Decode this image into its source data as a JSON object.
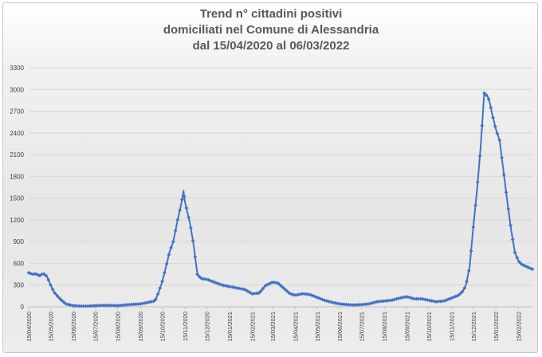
{
  "chart_data": {
    "type": "line",
    "title": "Trend n° cittadini positivi",
    "subtitle_lines": [
      "domiciliati nel Comune di Alessandria",
      "dal 15/04/2020 al 06/03/2022"
    ],
    "xlabel": "",
    "ylabel": "",
    "ylim": [
      0,
      3300
    ],
    "yticks": [
      0,
      300,
      600,
      900,
      1200,
      1500,
      1800,
      2100,
      2400,
      2700,
      3000,
      3300
    ],
    "xtick_labels": [
      "15/04/2020",
      "15/05/2020",
      "15/06/2020",
      "15/07/2020",
      "15/08/2020",
      "15/09/2020",
      "15/10/2020",
      "15/11/2020",
      "15/12/2020",
      "15/01/2021",
      "15/02/2021",
      "15/03/2021",
      "15/04/2021",
      "15/05/2021",
      "15/06/2021",
      "15/07/2021",
      "15/08/2021",
      "15/09/2021",
      "15/10/2021",
      "15/11/2021",
      "15/12/2021",
      "15/01/2022",
      "15/02/2022"
    ],
    "grid": true,
    "legend": "none",
    "series_color": "#4472c4",
    "series": [
      {
        "name": "",
        "x": [
          "2020-04-15",
          "2020-04-20",
          "2020-04-25",
          "2020-04-30",
          "2020-05-05",
          "2020-05-10",
          "2020-05-15",
          "2020-05-20",
          "2020-05-25",
          "2020-05-30",
          "2020-06-05",
          "2020-06-15",
          "2020-06-25",
          "2020-07-05",
          "2020-07-15",
          "2020-07-30",
          "2020-08-15",
          "2020-08-30",
          "2020-09-15",
          "2020-09-25",
          "2020-10-05",
          "2020-10-10",
          "2020-10-15",
          "2020-10-20",
          "2020-10-25",
          "2020-10-30",
          "2020-11-05",
          "2020-11-10",
          "2020-11-13",
          "2020-11-15",
          "2020-11-18",
          "2020-11-22",
          "2020-11-27",
          "2020-12-02",
          "2020-12-07",
          "2020-12-15",
          "2020-12-25",
          "2021-01-05",
          "2021-01-15",
          "2021-01-25",
          "2021-02-05",
          "2021-02-15",
          "2021-02-25",
          "2021-03-05",
          "2021-03-15",
          "2021-03-22",
          "2021-03-30",
          "2021-04-08",
          "2021-04-15",
          "2021-04-25",
          "2021-05-05",
          "2021-05-15",
          "2021-05-25",
          "2021-06-05",
          "2021-06-15",
          "2021-06-25",
          "2021-07-05",
          "2021-07-15",
          "2021-07-25",
          "2021-08-05",
          "2021-08-15",
          "2021-08-25",
          "2021-09-05",
          "2021-09-15",
          "2021-09-25",
          "2021-10-05",
          "2021-10-15",
          "2021-10-25",
          "2021-11-05",
          "2021-11-15",
          "2021-11-25",
          "2021-12-01",
          "2021-12-05",
          "2021-12-10",
          "2021-12-15",
          "2021-12-20",
          "2021-12-25",
          "2021-12-30",
          "2022-01-04",
          "2022-01-07",
          "2022-01-10",
          "2022-01-15",
          "2022-01-20",
          "2022-01-25",
          "2022-01-30",
          "2022-02-05",
          "2022-02-10",
          "2022-02-15",
          "2022-02-20",
          "2022-02-25",
          "2022-03-01",
          "2022-03-06"
        ],
        "values": [
          470,
          450,
          455,
          430,
          460,
          420,
          300,
          200,
          140,
          90,
          40,
          15,
          10,
          10,
          15,
          20,
          15,
          30,
          40,
          60,
          80,
          200,
          350,
          550,
          760,
          900,
          1200,
          1420,
          1600,
          1450,
          1320,
          1150,
          850,
          450,
          390,
          380,
          340,
          300,
          280,
          260,
          240,
          180,
          190,
          290,
          340,
          330,
          260,
          180,
          160,
          180,
          170,
          130,
          90,
          60,
          40,
          30,
          25,
          30,
          40,
          70,
          80,
          90,
          120,
          140,
          110,
          110,
          90,
          70,
          80,
          120,
          160,
          220,
          300,
          550,
          1100,
          1600,
          2200,
          2950,
          2900,
          2800,
          2650,
          2450,
          2300,
          1900,
          1500,
          1050,
          750,
          630,
          580,
          560,
          540,
          520
        ]
      }
    ]
  }
}
